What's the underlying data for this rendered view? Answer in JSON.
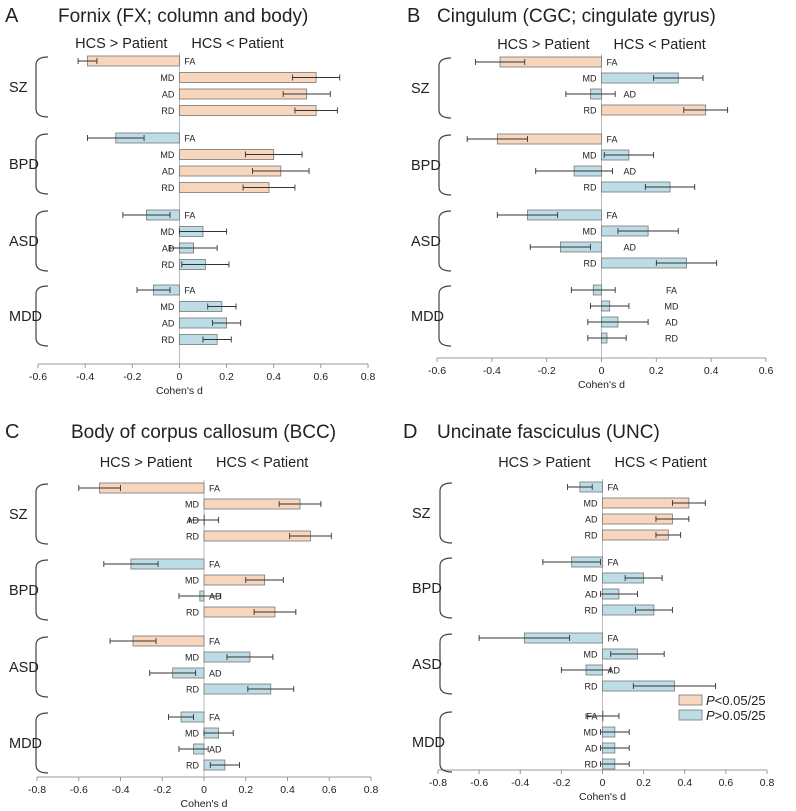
{
  "figure": {
    "legend": {
      "significant": {
        "prefix": "P",
        "suffix": "<0.05/25",
        "color": "#f7d6bd"
      },
      "nonsignificant": {
        "prefix": "P",
        "suffix": ">0.05/25",
        "color": "#bcdde6"
      }
    }
  },
  "chart_data": [
    {
      "type": "bar",
      "orientation": "horizontal",
      "panel_letter": "A",
      "title": "Fornix (FX; column and body)",
      "left_header": "HCS > Patient",
      "right_header": "HCS < Patient",
      "xlabel": "Cohen's d",
      "xlim": [
        -0.6,
        0.8
      ],
      "xticks": [
        -0.6,
        -0.4,
        -0.2,
        0,
        0.2,
        0.4,
        0.6,
        0.8
      ],
      "groups": [
        {
          "name": "SZ",
          "bars": [
            {
              "metric": "FA",
              "d": -0.39,
              "err": 0.04,
              "significant": true
            },
            {
              "metric": "MD",
              "d": 0.58,
              "err": 0.1,
              "significant": true
            },
            {
              "metric": "AD",
              "d": 0.54,
              "err": 0.1,
              "significant": true
            },
            {
              "metric": "RD",
              "d": 0.58,
              "err": 0.09,
              "significant": true
            }
          ]
        },
        {
          "name": "BPD",
          "bars": [
            {
              "metric": "FA",
              "d": -0.27,
              "err": 0.12,
              "significant": false
            },
            {
              "metric": "MD",
              "d": 0.4,
              "err": 0.12,
              "significant": true
            },
            {
              "metric": "AD",
              "d": 0.43,
              "err": 0.12,
              "significant": true
            },
            {
              "metric": "RD",
              "d": 0.38,
              "err": 0.11,
              "significant": true
            }
          ]
        },
        {
          "name": "ASD",
          "bars": [
            {
              "metric": "FA",
              "d": -0.14,
              "err": 0.1,
              "significant": false
            },
            {
              "metric": "MD",
              "d": 0.1,
              "err": 0.1,
              "significant": false
            },
            {
              "metric": "AD",
              "d": 0.06,
              "err": 0.1,
              "significant": false
            },
            {
              "metric": "RD",
              "d": 0.11,
              "err": 0.1,
              "significant": false
            }
          ]
        },
        {
          "name": "MDD",
          "bars": [
            {
              "metric": "FA",
              "d": -0.11,
              "err": 0.07,
              "significant": false
            },
            {
              "metric": "MD",
              "d": 0.18,
              "err": 0.06,
              "significant": false
            },
            {
              "metric": "AD",
              "d": 0.2,
              "err": 0.06,
              "significant": false
            },
            {
              "metric": "RD",
              "d": 0.16,
              "err": 0.06,
              "significant": false
            }
          ]
        }
      ]
    },
    {
      "type": "bar",
      "orientation": "horizontal",
      "panel_letter": "B",
      "title": "Cingulum (CGC; cingulate gyrus)",
      "left_header": "HCS > Patient",
      "right_header": "HCS < Patient",
      "xlabel": "Cohen's d",
      "xlim": [
        -0.6,
        0.6
      ],
      "xticks": [
        -0.6,
        -0.4,
        -0.2,
        0,
        0.2,
        0.4,
        0.6
      ],
      "groups": [
        {
          "name": "SZ",
          "bars": [
            {
              "metric": "FA",
              "d": -0.37,
              "err": 0.09,
              "significant": true
            },
            {
              "metric": "MD",
              "d": 0.28,
              "err": 0.09,
              "significant": false
            },
            {
              "metric": "AD",
              "d": -0.04,
              "err": 0.09,
              "significant": false
            },
            {
              "metric": "RD",
              "d": 0.38,
              "err": 0.08,
              "significant": true
            }
          ]
        },
        {
          "name": "BPD",
          "bars": [
            {
              "metric": "FA",
              "d": -0.38,
              "err": 0.11,
              "significant": true
            },
            {
              "metric": "MD",
              "d": 0.1,
              "err": 0.09,
              "significant": false
            },
            {
              "metric": "AD",
              "d": -0.1,
              "err": 0.14,
              "significant": false
            },
            {
              "metric": "RD",
              "d": 0.25,
              "err": 0.09,
              "significant": false
            }
          ]
        },
        {
          "name": "ASD",
          "bars": [
            {
              "metric": "FA",
              "d": -0.27,
              "err": 0.11,
              "significant": false
            },
            {
              "metric": "MD",
              "d": 0.17,
              "err": 0.11,
              "significant": false
            },
            {
              "metric": "AD",
              "d": -0.15,
              "err": 0.11,
              "significant": false
            },
            {
              "metric": "RD",
              "d": 0.31,
              "err": 0.11,
              "significant": false
            }
          ]
        },
        {
          "name": "MDD",
          "bars": [
            {
              "metric": "FA",
              "d": -0.03,
              "err": 0.08,
              "significant": false
            },
            {
              "metric": "MD",
              "d": 0.03,
              "err": 0.07,
              "significant": false
            },
            {
              "metric": "AD",
              "d": 0.06,
              "err": 0.11,
              "significant": false
            },
            {
              "metric": "RD",
              "d": 0.02,
              "err": 0.07,
              "significant": false
            }
          ]
        }
      ]
    },
    {
      "type": "bar",
      "orientation": "horizontal",
      "panel_letter": "C",
      "title": "Body of corpus callosum (BCC)",
      "left_header": "HCS > Patient",
      "right_header": "HCS < Patient",
      "xlabel": "Cohen's d",
      "xlim": [
        -0.8,
        0.8
      ],
      "xticks": [
        -0.8,
        -0.6,
        -0.4,
        -0.2,
        0,
        0.2,
        0.4,
        0.6,
        0.8
      ],
      "groups": [
        {
          "name": "SZ",
          "bars": [
            {
              "metric": "FA",
              "d": -0.5,
              "err": 0.1,
              "significant": true
            },
            {
              "metric": "MD",
              "d": 0.46,
              "err": 0.1,
              "significant": true
            },
            {
              "metric": "AD",
              "d": 0.0,
              "err": 0.07,
              "significant": true
            },
            {
              "metric": "RD",
              "d": 0.51,
              "err": 0.1,
              "significant": true
            }
          ]
        },
        {
          "name": "BPD",
          "bars": [
            {
              "metric": "FA",
              "d": -0.35,
              "err": 0.13,
              "significant": false
            },
            {
              "metric": "MD",
              "d": 0.29,
              "err": 0.09,
              "significant": true
            },
            {
              "metric": "AD",
              "d": -0.02,
              "err": 0.1,
              "significant": false
            },
            {
              "metric": "RD",
              "d": 0.34,
              "err": 0.1,
              "significant": true
            }
          ]
        },
        {
          "name": "ASD",
          "bars": [
            {
              "metric": "FA",
              "d": -0.34,
              "err": 0.11,
              "significant": true
            },
            {
              "metric": "MD",
              "d": 0.22,
              "err": 0.11,
              "significant": false
            },
            {
              "metric": "AD",
              "d": -0.15,
              "err": 0.11,
              "significant": false
            },
            {
              "metric": "RD",
              "d": 0.32,
              "err": 0.11,
              "significant": false
            }
          ]
        },
        {
          "name": "MDD",
          "bars": [
            {
              "metric": "FA",
              "d": -0.11,
              "err": 0.06,
              "significant": false
            },
            {
              "metric": "MD",
              "d": 0.07,
              "err": 0.07,
              "significant": false
            },
            {
              "metric": "AD",
              "d": -0.05,
              "err": 0.07,
              "significant": false
            },
            {
              "metric": "RD",
              "d": 0.1,
              "err": 0.07,
              "significant": false
            }
          ]
        }
      ]
    },
    {
      "type": "bar",
      "orientation": "horizontal",
      "panel_letter": "D",
      "title": "Uncinate fasciculus (UNC)",
      "left_header": "HCS > Patient",
      "right_header": "HCS < Patient",
      "xlabel": "Cohen's d",
      "xlim": [
        -0.8,
        0.8
      ],
      "xticks": [
        -0.8,
        -0.6,
        -0.4,
        -0.2,
        0,
        0.2,
        0.4,
        0.6,
        0.8
      ],
      "groups": [
        {
          "name": "SZ",
          "bars": [
            {
              "metric": "FA",
              "d": -0.11,
              "err": 0.06,
              "significant": false
            },
            {
              "metric": "MD",
              "d": 0.42,
              "err": 0.08,
              "significant": true
            },
            {
              "metric": "AD",
              "d": 0.34,
              "err": 0.08,
              "significant": true
            },
            {
              "metric": "RD",
              "d": 0.32,
              "err": 0.06,
              "significant": true
            }
          ]
        },
        {
          "name": "BPD",
          "bars": [
            {
              "metric": "FA",
              "d": -0.15,
              "err": 0.14,
              "significant": false
            },
            {
              "metric": "MD",
              "d": 0.2,
              "err": 0.09,
              "significant": false
            },
            {
              "metric": "AD",
              "d": 0.08,
              "err": 0.09,
              "significant": false
            },
            {
              "metric": "RD",
              "d": 0.25,
              "err": 0.09,
              "significant": false
            }
          ]
        },
        {
          "name": "ASD",
          "bars": [
            {
              "metric": "FA",
              "d": -0.38,
              "err": 0.22,
              "significant": false
            },
            {
              "metric": "MD",
              "d": 0.17,
              "err": 0.13,
              "significant": false
            },
            {
              "metric": "AD",
              "d": -0.08,
              "err": 0.12,
              "significant": false
            },
            {
              "metric": "RD",
              "d": 0.35,
              "err": 0.2,
              "significant": false
            }
          ]
        },
        {
          "name": "MDD",
          "bars": [
            {
              "metric": "FA",
              "d": 0.0,
              "err": 0.08,
              "significant": false
            },
            {
              "metric": "MD",
              "d": 0.06,
              "err": 0.07,
              "significant": false
            },
            {
              "metric": "AD",
              "d": 0.06,
              "err": 0.07,
              "significant": false
            },
            {
              "metric": "RD",
              "d": 0.06,
              "err": 0.07,
              "significant": false
            }
          ]
        }
      ]
    }
  ]
}
